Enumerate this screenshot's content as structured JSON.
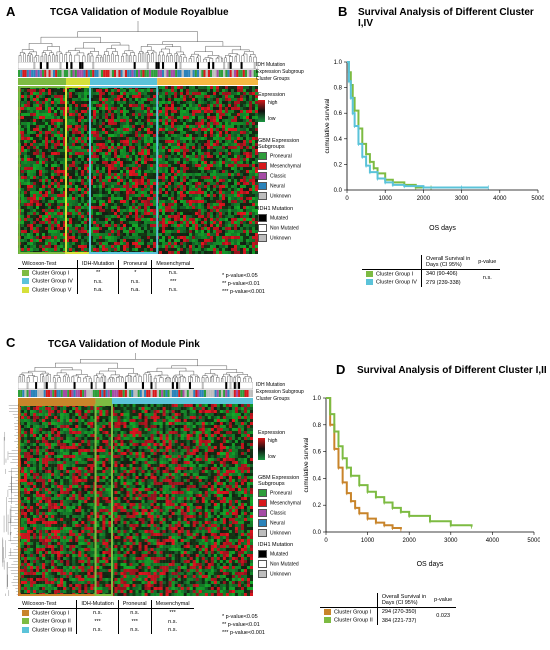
{
  "panel_a": {
    "letter": "A",
    "title": "TCGA Validation of Module Royalblue",
    "track_labels": [
      "IDH Mutation",
      "Expression Subgroup",
      "Cluster Groups"
    ],
    "legend_expression": {
      "title": "Expression",
      "high": "high",
      "low": "low"
    },
    "legend_gbm": {
      "title_line1": "GBM Expression",
      "title_line2": "Subgroups",
      "items": [
        {
          "label": "Proneural",
          "color": "#2e9e3b"
        },
        {
          "label": "Mesenchymal",
          "color": "#d7191c"
        },
        {
          "label": "Classic",
          "color": "#a64ca6"
        },
        {
          "label": "Neural",
          "color": "#2b83ba"
        },
        {
          "label": "Unknown",
          "color": "#bdbdbd"
        }
      ]
    },
    "legend_idh": {
      "title": "IDH1 Mutation",
      "items": [
        {
          "label": "Mutated",
          "color": "#000000"
        },
        {
          "label": "Non Mutated",
          "color": "#ffffff"
        },
        {
          "label": "Unknown",
          "color": "#bdbdbd"
        }
      ]
    },
    "table": {
      "headers": [
        "Wilcoxon-Test",
        "IDH-Mutation",
        "Proneural",
        "Mesenchymal"
      ],
      "rows": [
        {
          "group": "Cluster Group I",
          "color": "#7dbb42",
          "cells": [
            "**",
            "*",
            "n.s."
          ]
        },
        {
          "group": "Cluster Group IV",
          "color": "#5bc3d9",
          "cells": [
            "n.s.",
            "n.s.",
            "***"
          ]
        },
        {
          "group": "Cluster Group V",
          "color": "#d6e03a",
          "cells": [
            "n.a.",
            "n.a.",
            "n.s."
          ]
        }
      ]
    },
    "sig_legend": [
      "*    p-value<0.05",
      "**   p-value<0.01",
      "***  p-value<0.001"
    ]
  },
  "panel_b": {
    "letter": "B",
    "title": "Survival Analysis of Different Cluster I,IV",
    "ylabel": "cumulative survival",
    "xlabel": "OS days",
    "yticks": [
      "0.0",
      "0.2",
      "0.4",
      "0.6",
      "0.8",
      "1.0"
    ],
    "xticks": [
      "0",
      "1000",
      "2000",
      "3000",
      "4000",
      "5000"
    ],
    "table": {
      "header_line1": "Overall Survival in",
      "header_line2": "Days (CI 95%)",
      "pvalue_header": "p-value",
      "rows": [
        {
          "group": "Cluster Group I",
          "color": "#7dbb42",
          "value": "340 (90-406)"
        },
        {
          "group": "Cluster Group IV",
          "color": "#5bc3d9",
          "value": "279 (239-338)"
        }
      ],
      "pvalue": "n.s."
    }
  },
  "panel_c": {
    "letter": "C",
    "title": "TCGA Validation of Module Pink",
    "track_labels": [
      "IDH Mutation",
      "Expression Subgroup",
      "Cluster Groups"
    ],
    "legend_expression": {
      "title": "Expression",
      "high": "high",
      "low": "low"
    },
    "legend_gbm": {
      "title_line1": "GBM Expression",
      "title_line2": "Subgroups",
      "items": [
        {
          "label": "Proneural",
          "color": "#2e9e3b"
        },
        {
          "label": "Mesenchymal",
          "color": "#d7191c"
        },
        {
          "label": "Classic",
          "color": "#a64ca6"
        },
        {
          "label": "Neural",
          "color": "#2b83ba"
        },
        {
          "label": "Unknown",
          "color": "#bdbdbd"
        }
      ]
    },
    "legend_idh": {
      "title": "IDH1 Mutation",
      "items": [
        {
          "label": "Mutated",
          "color": "#000000"
        },
        {
          "label": "Non Mutated",
          "color": "#ffffff"
        },
        {
          "label": "Unknown",
          "color": "#bdbdbd"
        }
      ]
    },
    "table": {
      "headers": [
        "Wilcoxon-Test",
        "IDH-Mutation",
        "Proneural",
        "Mesenchymal"
      ],
      "rows": [
        {
          "group": "Cluster Group I",
          "color": "#c8842a",
          "cells": [
            "n.s.",
            "n.s.",
            "***"
          ]
        },
        {
          "group": "Cluster Group II",
          "color": "#7dbb42",
          "cells": [
            "***",
            "***",
            "n.s."
          ]
        },
        {
          "group": "Cluster Group III",
          "color": "#5bc3d9",
          "cells": [
            "n.s.",
            "n.s.",
            "n.s."
          ]
        }
      ]
    },
    "sig_legend": [
      "*    p-value<0.05",
      "**   p-value<0.01",
      "***  p-value<0.001"
    ]
  },
  "panel_d": {
    "letter": "D",
    "title": "Survival Analysis of Different Cluster I,II",
    "ylabel": "cumulative survival",
    "xlabel": "OS days",
    "yticks": [
      "0.0",
      "0.2",
      "0.4",
      "0.6",
      "0.8",
      "1.0"
    ],
    "xticks": [
      "0",
      "1000",
      "2000",
      "3000",
      "4000",
      "5000"
    ],
    "table": {
      "header_line1": "Overall Survival in",
      "header_line2": "Days (CI 95%)",
      "pvalue_header": "p-value",
      "rows": [
        {
          "group": "Cluster Group I",
          "color": "#c8842a",
          "value": "294 (270-350)"
        },
        {
          "group": "Cluster Group II",
          "color": "#7dbb42",
          "value": "384 (221-737)"
        }
      ],
      "pvalue": "0.023"
    }
  },
  "chart_data": [
    {
      "type": "line",
      "panel": "B",
      "xlim": [
        0,
        5000
      ],
      "ylim": [
        0,
        1
      ],
      "series": [
        {
          "name": "Cluster Group I",
          "color": "#7dbb42",
          "x": [
            0,
            50,
            100,
            150,
            200,
            300,
            400,
            500,
            600,
            700,
            800,
            1000,
            1200,
            1500,
            1800,
            2200
          ],
          "y": [
            1.0,
            0.92,
            0.82,
            0.72,
            0.62,
            0.48,
            0.36,
            0.28,
            0.22,
            0.17,
            0.13,
            0.08,
            0.06,
            0.04,
            0.02,
            0.02
          ]
        },
        {
          "name": "Cluster Group IV",
          "color": "#5bc3d9",
          "x": [
            0,
            50,
            100,
            150,
            200,
            300,
            400,
            500,
            600,
            800,
            1000,
            1200,
            1500,
            2000,
            3000,
            3700
          ],
          "y": [
            1.0,
            0.85,
            0.72,
            0.6,
            0.5,
            0.36,
            0.26,
            0.19,
            0.14,
            0.09,
            0.06,
            0.04,
            0.03,
            0.02,
            0.02,
            0.02
          ]
        }
      ]
    },
    {
      "type": "line",
      "panel": "D",
      "xlim": [
        0,
        5000
      ],
      "ylim": [
        0,
        1
      ],
      "series": [
        {
          "name": "Cluster Group I",
          "color": "#c8842a",
          "x": [
            0,
            100,
            200,
            300,
            400,
            500,
            600,
            700,
            800,
            1000,
            1200,
            1400,
            1600,
            1800
          ],
          "y": [
            1.0,
            0.8,
            0.62,
            0.48,
            0.37,
            0.29,
            0.23,
            0.18,
            0.14,
            0.1,
            0.07,
            0.05,
            0.03,
            0.02
          ]
        },
        {
          "name": "Cluster Group II",
          "color": "#7dbb42",
          "x": [
            0,
            100,
            200,
            300,
            400,
            500,
            600,
            800,
            1000,
            1200,
            1400,
            1600,
            1800,
            2000,
            2500,
            3000,
            3500
          ],
          "y": [
            1.0,
            0.88,
            0.75,
            0.64,
            0.55,
            0.48,
            0.42,
            0.35,
            0.3,
            0.26,
            0.22,
            0.18,
            0.15,
            0.12,
            0.08,
            0.05,
            0.04
          ]
        }
      ]
    }
  ]
}
